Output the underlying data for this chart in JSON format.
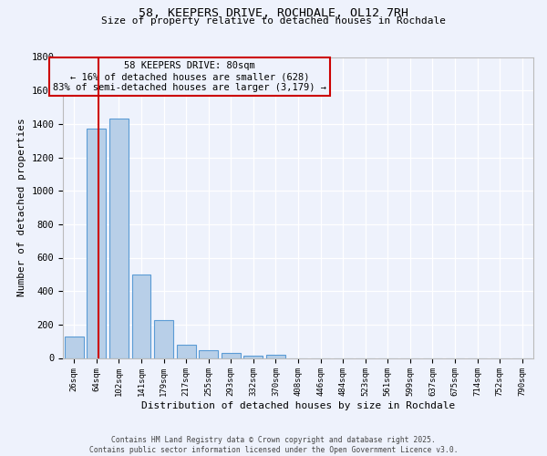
{
  "title_line1": "58, KEEPERS DRIVE, ROCHDALE, OL12 7RH",
  "title_line2": "Size of property relative to detached houses in Rochdale",
  "xlabel": "Distribution of detached houses by size in Rochdale",
  "ylabel": "Number of detached properties",
  "categories": [
    "26sqm",
    "64sqm",
    "102sqm",
    "141sqm",
    "179sqm",
    "217sqm",
    "255sqm",
    "293sqm",
    "332sqm",
    "370sqm",
    "408sqm",
    "446sqm",
    "484sqm",
    "523sqm",
    "561sqm",
    "599sqm",
    "637sqm",
    "675sqm",
    "714sqm",
    "752sqm",
    "790sqm"
  ],
  "values": [
    130,
    1370,
    1430,
    500,
    225,
    80,
    47,
    28,
    15,
    20,
    0,
    0,
    0,
    0,
    0,
    0,
    0,
    0,
    0,
    0,
    0
  ],
  "bar_color": "#b8cfe8",
  "bar_edge_color": "#5b9bd5",
  "background_color": "#eef2fc",
  "grid_color": "#ffffff",
  "vline_x": 1.07,
  "vline_color": "#cc0000",
  "annotation_text": "58 KEEPERS DRIVE: 80sqm\n← 16% of detached houses are smaller (628)\n83% of semi-detached houses are larger (3,179) →",
  "annotation_box_edgecolor": "#cc0000",
  "ylim": [
    0,
    1800
  ],
  "yticks": [
    0,
    200,
    400,
    600,
    800,
    1000,
    1200,
    1400,
    1600,
    1800
  ],
  "footer_line1": "Contains HM Land Registry data © Crown copyright and database right 2025.",
  "footer_line2": "Contains public sector information licensed under the Open Government Licence v3.0.",
  "figsize": [
    6.0,
    5.0
  ],
  "dpi": 100
}
